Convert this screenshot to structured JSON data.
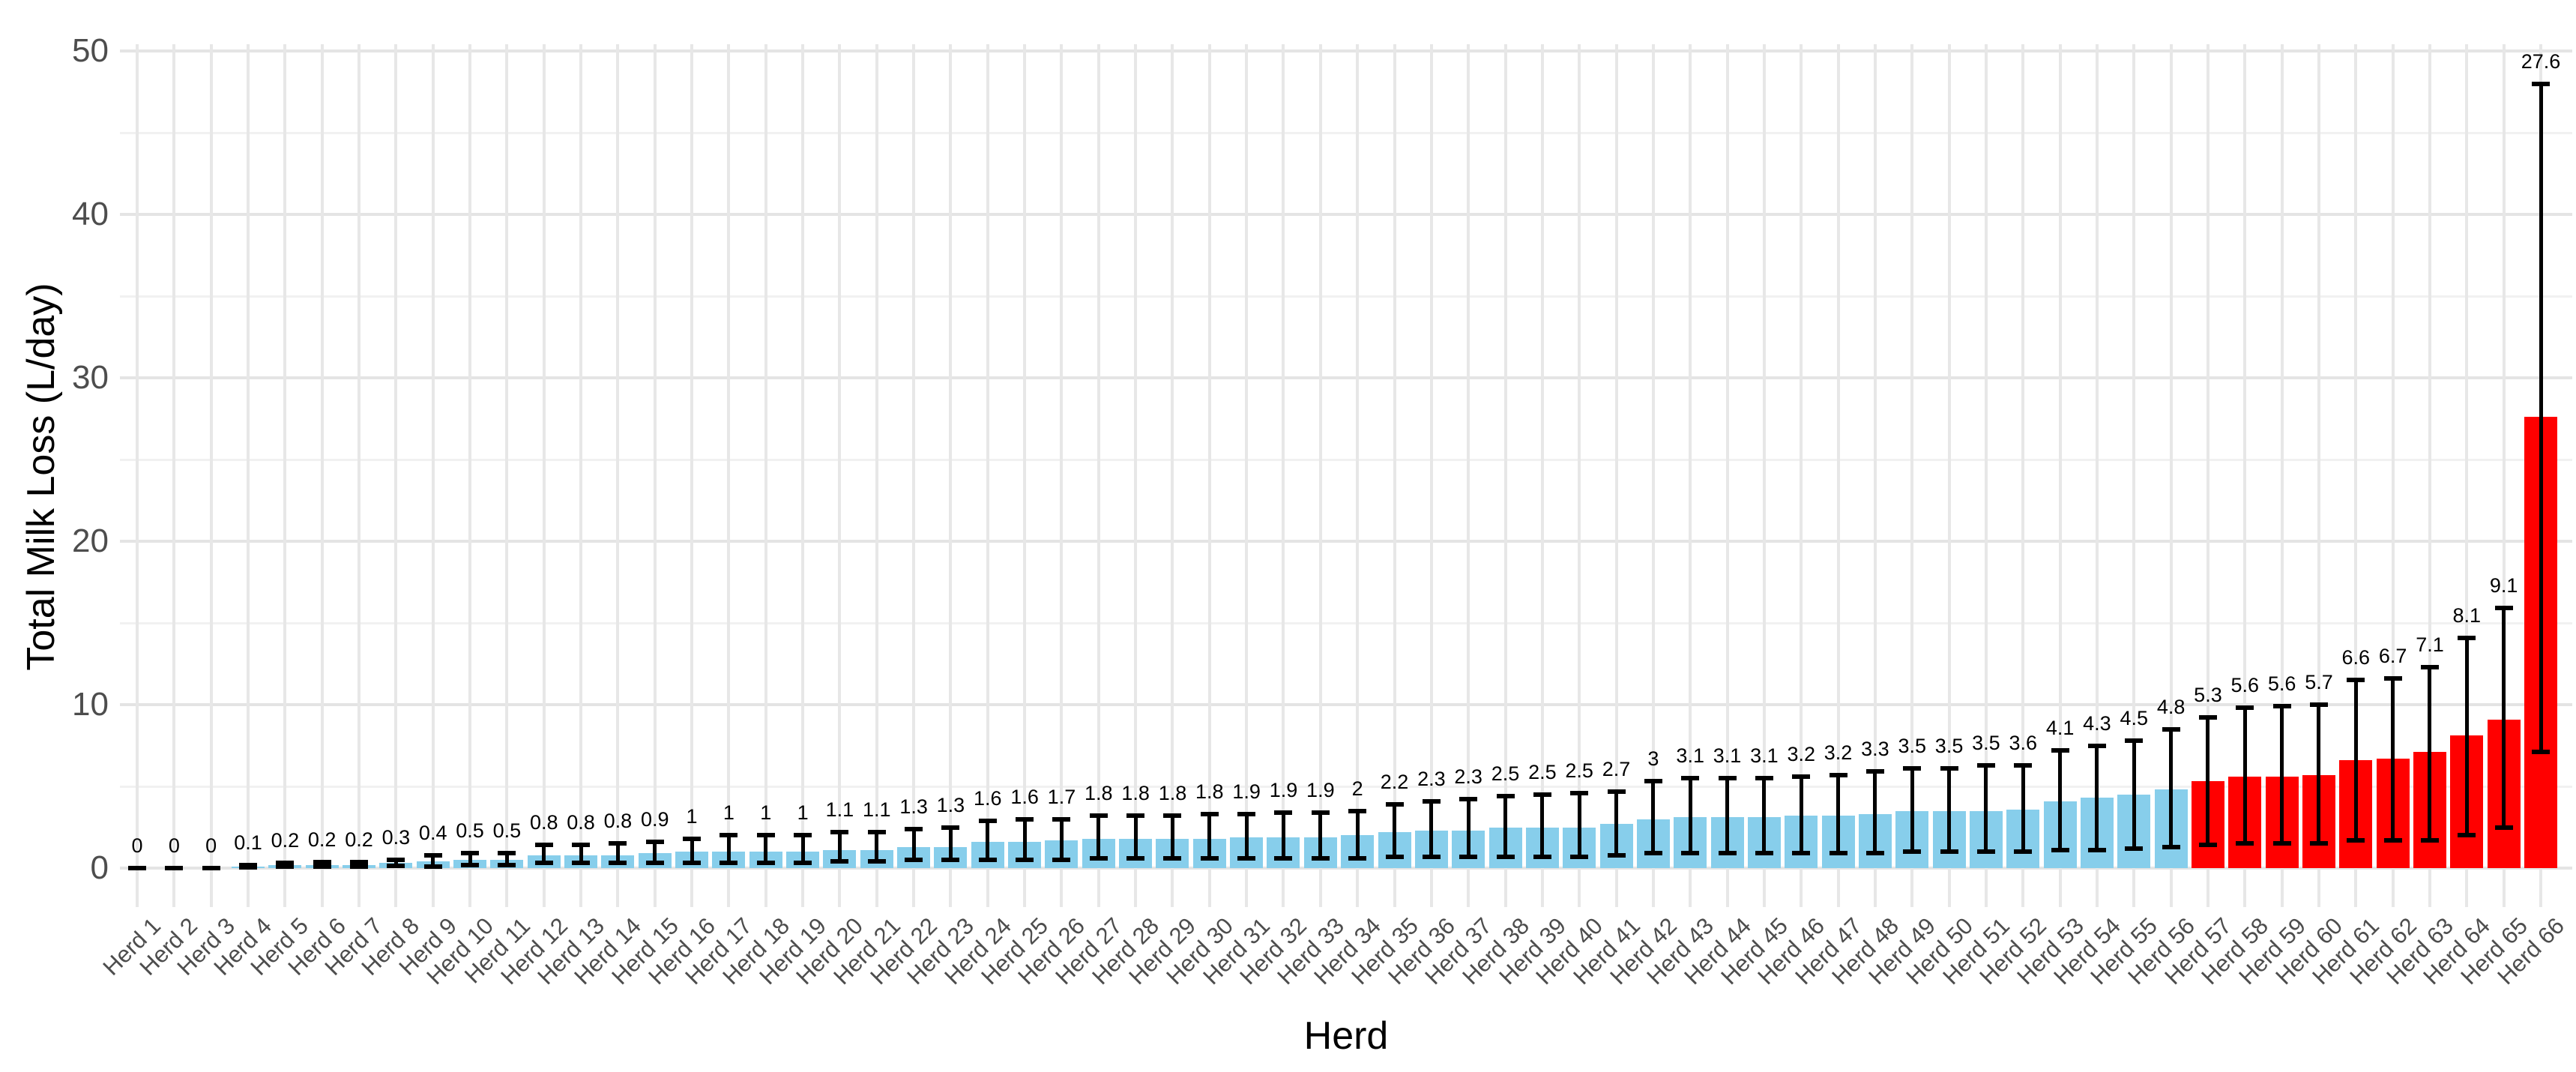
{
  "chart_data": {
    "type": "bar",
    "title": "",
    "xlabel": "Herd",
    "ylabel": "Total Milk Loss (L/day)",
    "ylim": [
      0,
      52
    ],
    "yticks_major": [
      0,
      10,
      20,
      30,
      40,
      50
    ],
    "yticks_minor": [
      5,
      15,
      25,
      35,
      45
    ],
    "grid": true,
    "legend": "none",
    "bar_color_normal": "#87CEEB",
    "bar_color_highlight": "#FF0000",
    "error_bar_color": "#000000",
    "tick_label_color": "#4d4d4d",
    "highlight_from_index": 56,
    "categories": [
      "Herd 1",
      "Herd 2",
      "Herd 3",
      "Herd 4",
      "Herd 5",
      "Herd 6",
      "Herd 7",
      "Herd 8",
      "Herd 9",
      "Herd 10",
      "Herd 11",
      "Herd 12",
      "Herd 13",
      "Herd 14",
      "Herd 15",
      "Herd 16",
      "Herd 17",
      "Herd 18",
      "Herd 19",
      "Herd 20",
      "Herd 21",
      "Herd 22",
      "Herd 23",
      "Herd 24",
      "Herd 25",
      "Herd 26",
      "Herd 27",
      "Herd 28",
      "Herd 29",
      "Herd 30",
      "Herd 31",
      "Herd 32",
      "Herd 33",
      "Herd 34",
      "Herd 35",
      "Herd 36",
      "Herd 37",
      "Herd 38",
      "Herd 39",
      "Herd 40",
      "Herd 41",
      "Herd 42",
      "Herd 43",
      "Herd 44",
      "Herd 45",
      "Herd 46",
      "Herd 47",
      "Herd 48",
      "Herd 49",
      "Herd 50",
      "Herd 51",
      "Herd 52",
      "Herd 53",
      "Herd 54",
      "Herd 55",
      "Herd 56",
      "Herd 57",
      "Herd 58",
      "Herd 59",
      "Herd 60",
      "Herd 61",
      "Herd 62",
      "Herd 63",
      "Herd 64",
      "Herd 65",
      "Herd 66"
    ],
    "values": [
      0,
      0,
      0,
      0.1,
      0.2,
      0.2,
      0.2,
      0.3,
      0.4,
      0.5,
      0.5,
      0.8,
      0.8,
      0.8,
      0.9,
      1,
      1,
      1,
      1,
      1.1,
      1.1,
      1.3,
      1.3,
      1.6,
      1.6,
      1.7,
      1.8,
      1.8,
      1.8,
      1.8,
      1.9,
      1.9,
      1.9,
      2,
      2.2,
      2.3,
      2.3,
      2.5,
      2.5,
      2.5,
      2.7,
      3,
      3.1,
      3.1,
      3.1,
      3.2,
      3.2,
      3.3,
      3.5,
      3.5,
      3.5,
      3.6,
      4.1,
      4.3,
      4.5,
      4.8,
      5.3,
      5.6,
      5.6,
      5.7,
      6.6,
      6.7,
      7.1,
      8.1,
      9.1,
      27.6
    ],
    "value_labels": [
      "0",
      "0",
      "0",
      "0.1",
      "0.2",
      "0.2",
      "0.2",
      "0.3",
      "0.4",
      "0.5",
      "0.5",
      "0.8",
      "0.8",
      "0.8",
      "0.9",
      "1",
      "1",
      "1",
      "1",
      "1.1",
      "1.1",
      "1.3",
      "1.3",
      "1.6",
      "1.6",
      "1.7",
      "1.8",
      "1.8",
      "1.8",
      "1.8",
      "1.9",
      "1.9",
      "1.9",
      "2",
      "2.2",
      "2.3",
      "2.3",
      "2.5",
      "2.5",
      "2.5",
      "2.7",
      "3",
      "3.1",
      "3.1",
      "3.1",
      "3.2",
      "3.2",
      "3.3",
      "3.5",
      "3.5",
      "3.5",
      "3.6",
      "4.1",
      "4.3",
      "4.5",
      "4.8",
      "5.3",
      "5.6",
      "5.6",
      "5.7",
      "6.6",
      "6.7",
      "7.1",
      "8.1",
      "9.1",
      "27.6"
    ],
    "error_low": [
      0,
      0,
      0,
      0.05,
      0.1,
      0.1,
      0.1,
      0.15,
      0.1,
      0.2,
      0.2,
      0.3,
      0.3,
      0.3,
      0.3,
      0.3,
      0.3,
      0.3,
      0.3,
      0.4,
      0.4,
      0.5,
      0.5,
      0.5,
      0.5,
      0.5,
      0.6,
      0.6,
      0.6,
      0.6,
      0.6,
      0.6,
      0.6,
      0.6,
      0.7,
      0.7,
      0.7,
      0.7,
      0.7,
      0.7,
      0.8,
      0.9,
      0.9,
      0.9,
      0.9,
      0.9,
      0.9,
      0.9,
      1.0,
      1.0,
      1.0,
      1.0,
      1.1,
      1.1,
      1.2,
      1.3,
      1.4,
      1.5,
      1.5,
      1.5,
      1.7,
      1.7,
      1.7,
      2.0,
      2.5,
      7.1
    ],
    "error_high": [
      0,
      0,
      0,
      0.2,
      0.3,
      0.35,
      0.35,
      0.5,
      0.8,
      0.9,
      0.9,
      1.4,
      1.4,
      1.5,
      1.6,
      1.8,
      2.0,
      2.0,
      2.0,
      2.2,
      2.2,
      2.4,
      2.5,
      2.9,
      3.0,
      3.0,
      3.2,
      3.2,
      3.2,
      3.3,
      3.3,
      3.4,
      3.4,
      3.5,
      3.9,
      4.1,
      4.2,
      4.4,
      4.5,
      4.6,
      4.7,
      5.3,
      5.5,
      5.5,
      5.5,
      5.6,
      5.7,
      5.9,
      6.1,
      6.1,
      6.3,
      6.3,
      7.2,
      7.5,
      7.8,
      8.5,
      9.2,
      9.8,
      9.9,
      10.0,
      11.5,
      11.6,
      12.3,
      14.1,
      15.9,
      48.0
    ]
  }
}
